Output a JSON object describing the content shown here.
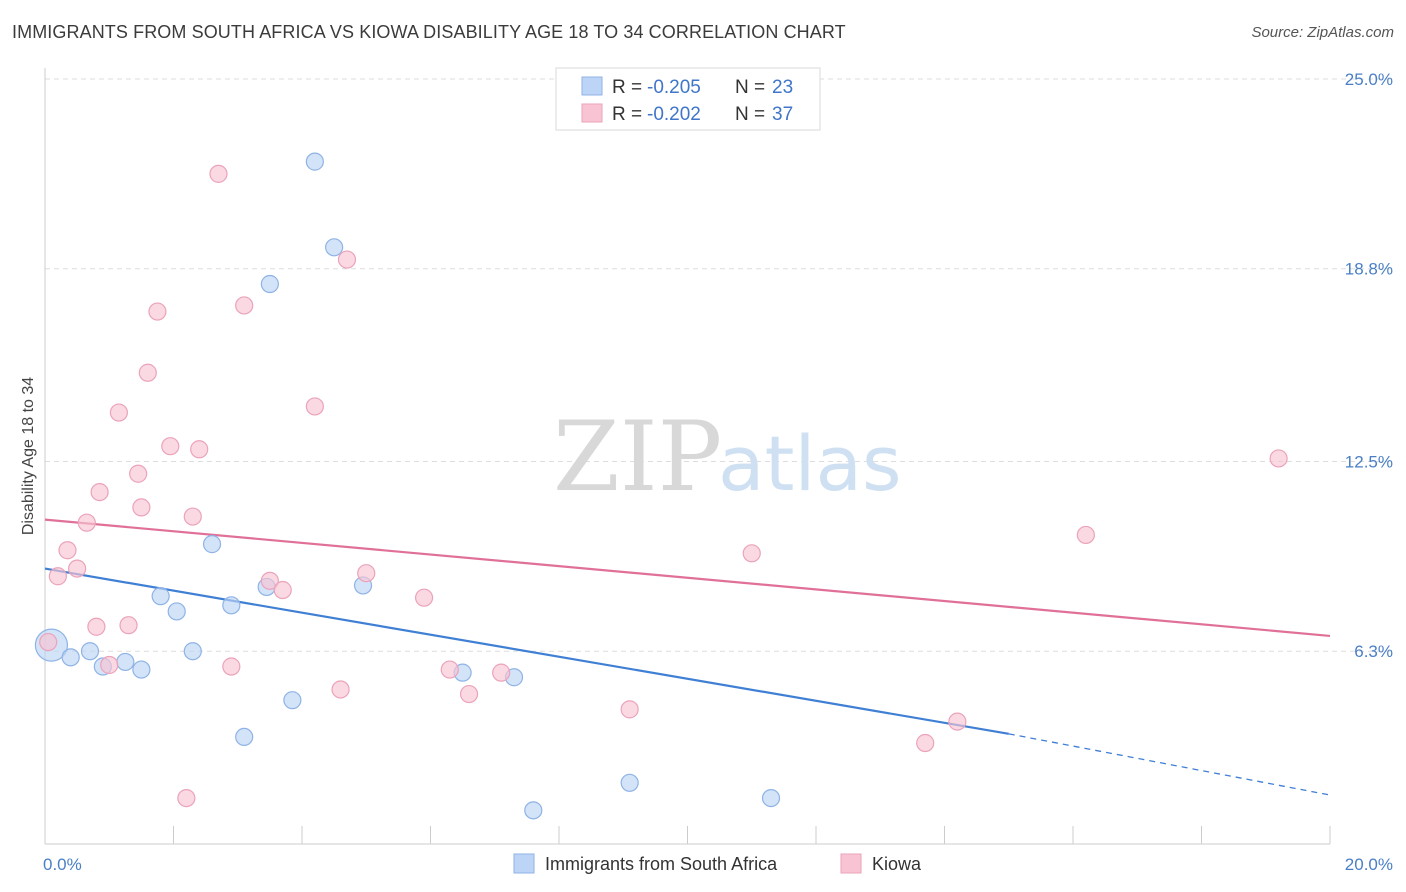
{
  "title": "IMMIGRANTS FROM SOUTH AFRICA VS KIOWA DISABILITY AGE 18 TO 34 CORRELATION CHART",
  "source": "Source: ZipAtlas.com",
  "watermark": {
    "zip": "ZIP",
    "atlas": "atlas"
  },
  "colors": {
    "blue": "#3f7fd4",
    "blue_fill": "#bcd4f5",
    "pink": "#e07098",
    "pink_fill": "#f8c4d4",
    "tick": "#4a7fc6"
  },
  "legend": {
    "series1": {
      "r_label": "R = ",
      "r_value": "-0.205",
      "n_label": "N = ",
      "n_value": "23"
    },
    "series2": {
      "r_label": "R = ",
      "r_value": "-0.202",
      "n_label": "N = ",
      "n_value": "37"
    }
  },
  "chart_data": {
    "type": "scatter",
    "title": "IMMIGRANTS FROM SOUTH AFRICA VS KIOWA DISABILITY AGE 18 TO 34 CORRELATION CHART",
    "xlabel": "",
    "ylabel": "Disability Age 18 to 34",
    "xlim": [
      0,
      20
    ],
    "ylim": [
      0,
      25
    ],
    "x_tick_labels": [
      "0.0%",
      "20.0%"
    ],
    "y_ticks": [
      6.3,
      12.5,
      18.8,
      25.0
    ],
    "y_tick_labels": [
      "6.3%",
      "12.5%",
      "18.8%",
      "25.0%"
    ],
    "grid": true,
    "legend_position": "top-center",
    "series": [
      {
        "name": "Immigrants from South Africa",
        "color": "#3f7fd4",
        "points": [
          [
            0.1,
            6.5
          ],
          [
            0.4,
            6.1
          ],
          [
            0.7,
            6.3
          ],
          [
            0.9,
            5.8
          ],
          [
            1.25,
            5.95
          ],
          [
            1.5,
            5.7
          ],
          [
            1.8,
            8.1
          ],
          [
            2.05,
            7.6
          ],
          [
            2.3,
            6.3
          ],
          [
            2.6,
            9.8
          ],
          [
            2.9,
            7.8
          ],
          [
            3.1,
            3.5
          ],
          [
            3.5,
            18.3
          ],
          [
            3.45,
            8.4
          ],
          [
            3.85,
            4.7
          ],
          [
            4.2,
            22.3
          ],
          [
            4.5,
            19.5
          ],
          [
            4.95,
            8.45
          ],
          [
            6.5,
            5.6
          ],
          [
            7.3,
            5.45
          ],
          [
            7.6,
            1.1
          ],
          [
            9.1,
            2.0
          ],
          [
            11.3,
            1.5
          ]
        ],
        "trend": {
          "x": [
            0,
            15
          ],
          "y": [
            9.0,
            3.6
          ]
        },
        "trend_dashed": {
          "x": [
            15,
            20
          ],
          "y": [
            3.6,
            1.6
          ]
        }
      },
      {
        "name": "Kiowa",
        "color": "#e07098",
        "points": [
          [
            0.05,
            6.6
          ],
          [
            0.2,
            8.75
          ],
          [
            0.35,
            9.6
          ],
          [
            0.5,
            9.0
          ],
          [
            0.65,
            10.5
          ],
          [
            0.8,
            7.1
          ],
          [
            0.85,
            11.5
          ],
          [
            1.0,
            5.85
          ],
          [
            1.15,
            14.1
          ],
          [
            1.3,
            7.15
          ],
          [
            1.45,
            12.1
          ],
          [
            1.5,
            11.0
          ],
          [
            1.6,
            15.4
          ],
          [
            1.75,
            17.4
          ],
          [
            1.95,
            13.0
          ],
          [
            2.2,
            1.5
          ],
          [
            2.3,
            10.7
          ],
          [
            2.4,
            12.9
          ],
          [
            2.7,
            21.9
          ],
          [
            2.9,
            5.8
          ],
          [
            3.1,
            17.6
          ],
          [
            3.5,
            8.6
          ],
          [
            3.7,
            8.3
          ],
          [
            4.2,
            14.3
          ],
          [
            4.6,
            5.05
          ],
          [
            4.7,
            19.1
          ],
          [
            5.0,
            8.85
          ],
          [
            5.9,
            8.05
          ],
          [
            6.3,
            5.7
          ],
          [
            6.6,
            4.9
          ],
          [
            7.1,
            5.6
          ],
          [
            9.1,
            4.4
          ],
          [
            11.0,
            9.5
          ],
          [
            13.7,
            3.3
          ],
          [
            14.2,
            4.0
          ],
          [
            16.2,
            10.1
          ],
          [
            19.2,
            12.6
          ]
        ],
        "trend": {
          "x": [
            0,
            20
          ],
          "y": [
            10.6,
            6.8
          ]
        }
      }
    ]
  }
}
